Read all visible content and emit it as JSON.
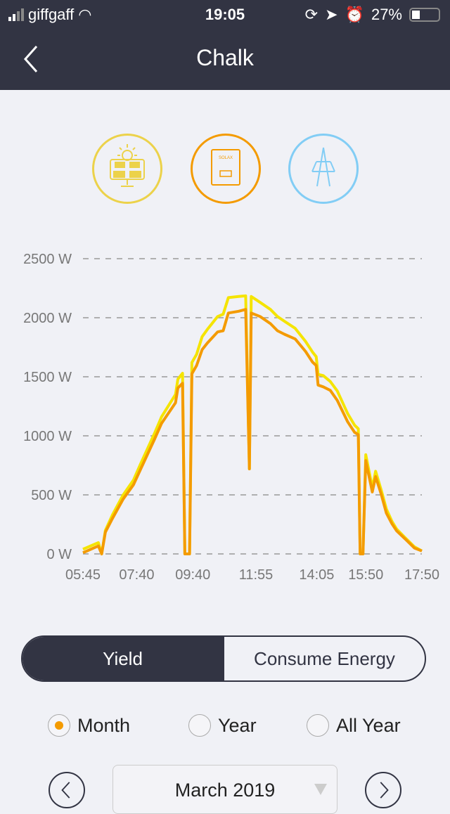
{
  "status_bar": {
    "carrier": "giffgaff",
    "time": "19:05",
    "battery": "27%",
    "battery_level": 0.27
  },
  "header": {
    "title": "Chalk"
  },
  "icons": [
    {
      "name": "solar-panel-icon",
      "color": "#ecd24a"
    },
    {
      "name": "inverter-icon",
      "color": "#f49b00",
      "logo": "SOLAX"
    },
    {
      "name": "power-grid-icon",
      "color": "#82cdf5"
    }
  ],
  "chart_data": {
    "type": "line",
    "title": "",
    "xlabel": "",
    "ylabel": "",
    "ylim": [
      0,
      2500
    ],
    "yticks": [
      "0 W",
      "500 W",
      "1000 W",
      "1500 W",
      "2000 W",
      "2500 W"
    ],
    "ytick_values": [
      0,
      500,
      1000,
      1500,
      2000,
      2500
    ],
    "xticks": [
      "05:45",
      "07:40",
      "09:40",
      "11:55",
      "14:05",
      "15:50",
      "17:50"
    ],
    "xlim": [
      "05:45",
      "17:50"
    ],
    "grid": "horizontal dashed",
    "x": [
      "05:45",
      "06:18",
      "06:25",
      "06:33",
      "06:48",
      "07:11",
      "07:33",
      "07:48",
      "08:18",
      "08:33",
      "09:03",
      "09:08",
      "09:18",
      "09:23",
      "09:33",
      "09:38",
      "09:48",
      "10:00",
      "10:11",
      "10:33",
      "10:45",
      "10:56",
      "11:18",
      "11:33",
      "11:41",
      "11:45",
      "12:04",
      "12:26",
      "12:41",
      "12:56",
      "13:19",
      "13:41",
      "13:56",
      "14:04",
      "14:08",
      "14:19",
      "14:34",
      "14:49",
      "15:11",
      "15:26",
      "15:34",
      "15:38",
      "15:44",
      "15:50",
      "16:04",
      "16:11",
      "16:23",
      "16:34",
      "16:46",
      "16:56",
      "17:16",
      "17:34",
      "17:50"
    ],
    "series": [
      {
        "color": "#f5e400",
        "values": [
          40,
          95,
          0,
          200,
          330,
          500,
          625,
          760,
          1020,
          1160,
          1350,
          1480,
          1530,
          0,
          0,
          1620,
          1690,
          1840,
          1900,
          2010,
          2030,
          2170,
          2180,
          2185,
          720,
          2180,
          2130,
          2070,
          2010,
          1970,
          1910,
          1800,
          1710,
          1670,
          1520,
          1510,
          1460,
          1380,
          1190,
          1090,
          1060,
          0,
          0,
          840,
          560,
          700,
          540,
          380,
          275,
          210,
          130,
          60,
          25
        ]
      },
      {
        "color": "#f49b00",
        "values": [
          10,
          67,
          0,
          185,
          300,
          465,
          585,
          715,
          970,
          1105,
          1280,
          1405,
          1445,
          0,
          0,
          1525,
          1595,
          1730,
          1785,
          1880,
          1890,
          2040,
          2055,
          2070,
          720,
          2040,
          2010,
          1950,
          1890,
          1860,
          1820,
          1715,
          1625,
          1595,
          1430,
          1415,
          1385,
          1300,
          1120,
          1030,
          1010,
          0,
          0,
          790,
          525,
          655,
          505,
          345,
          255,
          195,
          120,
          50,
          25
        ]
      }
    ]
  },
  "tabs": {
    "yield": "Yield",
    "consume": "Consume Energy",
    "active": "yield"
  },
  "period": {
    "options": [
      "Month",
      "Year",
      "All Year"
    ],
    "selected": "Month"
  },
  "date_select": {
    "value": "March 2019"
  }
}
